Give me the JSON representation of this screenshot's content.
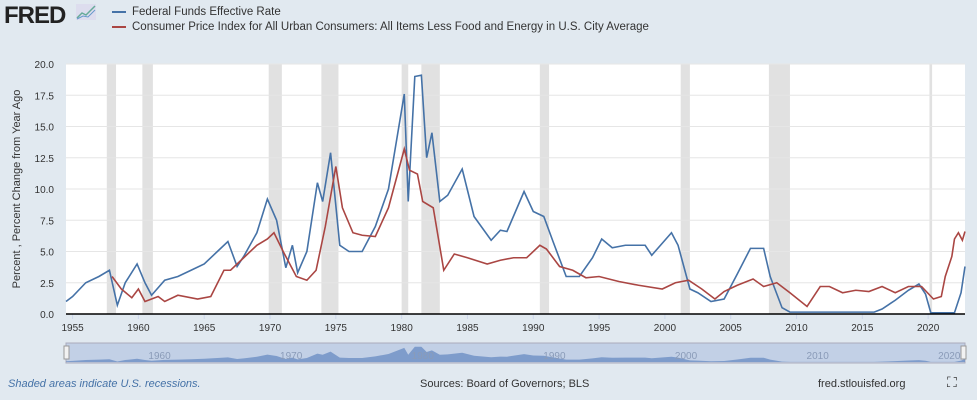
{
  "logo": "FRED",
  "footer": {
    "note": "Shaded areas indicate U.S. recessions.",
    "sources": "Sources: Board of Governors; BLS",
    "site": "fred.stlouisfed.org"
  },
  "colors": {
    "fedfunds": "#4572a7",
    "cpi": "#aa4643",
    "recession": "#e1e1e1",
    "background": "#e1e9f0"
  },
  "chart_data": {
    "type": "line",
    "ylabel": "Percent , Percent Change from Year Ago",
    "ylim": [
      0,
      20
    ],
    "xlim": [
      1954.5,
      2022.8
    ],
    "yticks": [
      "0.0",
      "2.5",
      "5.0",
      "7.5",
      "10.0",
      "12.5",
      "15.0",
      "17.5",
      "20.0"
    ],
    "xticks": [
      "1955",
      "1960",
      "1965",
      "1970",
      "1975",
      "1980",
      "1985",
      "1990",
      "1995",
      "2000",
      "2005",
      "2010",
      "2015",
      "2020"
    ],
    "navigator_ticks": [
      "1960",
      "1970",
      "1980",
      "1990",
      "2000",
      "2010",
      "2020"
    ],
    "recessions": [
      [
        1957.6,
        1958.3
      ],
      [
        1960.3,
        1961.1
      ],
      [
        1969.9,
        1970.9
      ],
      [
        1973.9,
        1975.2
      ],
      [
        1980.0,
        1980.5
      ],
      [
        1981.5,
        1982.9
      ],
      [
        1990.5,
        1991.2
      ],
      [
        2001.2,
        2001.9
      ],
      [
        2007.9,
        2009.5
      ],
      [
        2020.1,
        2020.3
      ]
    ],
    "series": [
      {
        "name": "Federal Funds Effective Rate",
        "points": [
          [
            1954.5,
            1.0
          ],
          [
            1955,
            1.4
          ],
          [
            1956,
            2.5
          ],
          [
            1957,
            3.0
          ],
          [
            1957.8,
            3.5
          ],
          [
            1958.4,
            0.7
          ],
          [
            1959,
            2.5
          ],
          [
            1959.9,
            4.0
          ],
          [
            1960.5,
            2.5
          ],
          [
            1961,
            1.5
          ],
          [
            1962,
            2.7
          ],
          [
            1963,
            3.0
          ],
          [
            1964,
            3.5
          ],
          [
            1965,
            4.0
          ],
          [
            1966,
            5.0
          ],
          [
            1966.8,
            5.8
          ],
          [
            1967.5,
            3.8
          ],
          [
            1968,
            4.6
          ],
          [
            1969,
            6.5
          ],
          [
            1969.8,
            9.2
          ],
          [
            1970.5,
            7.5
          ],
          [
            1971.2,
            3.7
          ],
          [
            1971.7,
            5.5
          ],
          [
            1972.1,
            3.3
          ],
          [
            1972.8,
            5.0
          ],
          [
            1973.6,
            10.5
          ],
          [
            1974.0,
            9.0
          ],
          [
            1974.6,
            12.9
          ],
          [
            1975.3,
            5.5
          ],
          [
            1976,
            5.0
          ],
          [
            1977,
            5.0
          ],
          [
            1978,
            7.0
          ],
          [
            1979,
            10.0
          ],
          [
            1980.2,
            17.6
          ],
          [
            1980.5,
            9.0
          ],
          [
            1981.0,
            19.0
          ],
          [
            1981.5,
            19.1
          ],
          [
            1981.9,
            12.5
          ],
          [
            1982.3,
            14.5
          ],
          [
            1982.9,
            9.0
          ],
          [
            1983.5,
            9.5
          ],
          [
            1984.6,
            11.6
          ],
          [
            1985.5,
            7.8
          ],
          [
            1986.8,
            5.9
          ],
          [
            1987.5,
            6.7
          ],
          [
            1988,
            6.6
          ],
          [
            1989.3,
            9.8
          ],
          [
            1990,
            8.2
          ],
          [
            1990.8,
            7.8
          ],
          [
            1991.5,
            5.8
          ],
          [
            1992.5,
            3.0
          ],
          [
            1993.5,
            3.0
          ],
          [
            1994.5,
            4.5
          ],
          [
            1995.2,
            6.0
          ],
          [
            1996,
            5.3
          ],
          [
            1997,
            5.5
          ],
          [
            1998.5,
            5.5
          ],
          [
            1999,
            4.7
          ],
          [
            2000.5,
            6.5
          ],
          [
            2001,
            5.5
          ],
          [
            2001.9,
            2.0
          ],
          [
            2002.5,
            1.7
          ],
          [
            2003.5,
            1.0
          ],
          [
            2004.5,
            1.2
          ],
          [
            2005.5,
            3.2
          ],
          [
            2006.5,
            5.25
          ],
          [
            2007.5,
            5.25
          ],
          [
            2008,
            3.0
          ],
          [
            2008.9,
            0.5
          ],
          [
            2009.5,
            0.15
          ],
          [
            2015.9,
            0.15
          ],
          [
            2016.5,
            0.4
          ],
          [
            2017.5,
            1.1
          ],
          [
            2018.5,
            1.9
          ],
          [
            2019.3,
            2.4
          ],
          [
            2019.8,
            1.6
          ],
          [
            2020.2,
            0.1
          ],
          [
            2022.0,
            0.1
          ],
          [
            2022.5,
            1.7
          ],
          [
            2022.8,
            3.8
          ]
        ]
      },
      {
        "name": "Consumer Price Index for All Urban Consumers: All Items Less Food and Energy in U.S. City Average",
        "points": [
          [
            1958,
            3.0
          ],
          [
            1958.7,
            2.0
          ],
          [
            1959.5,
            1.3
          ],
          [
            1960,
            2.0
          ],
          [
            1960.5,
            1.0
          ],
          [
            1961.5,
            1.4
          ],
          [
            1962,
            1.0
          ],
          [
            1963,
            1.5
          ],
          [
            1964.5,
            1.2
          ],
          [
            1965.5,
            1.4
          ],
          [
            1966.5,
            3.5
          ],
          [
            1967,
            3.5
          ],
          [
            1968,
            4.5
          ],
          [
            1969,
            5.5
          ],
          [
            1969.8,
            6.0
          ],
          [
            1970.3,
            6.5
          ],
          [
            1971,
            5.0
          ],
          [
            1972,
            3.0
          ],
          [
            1972.8,
            2.7
          ],
          [
            1973.5,
            3.5
          ],
          [
            1974.2,
            7.0
          ],
          [
            1975.0,
            11.8
          ],
          [
            1975.5,
            8.5
          ],
          [
            1976.3,
            6.5
          ],
          [
            1977,
            6.3
          ],
          [
            1978,
            6.2
          ],
          [
            1979,
            8.5
          ],
          [
            1980.2,
            13.2
          ],
          [
            1980.6,
            11.5
          ],
          [
            1981.2,
            11.2
          ],
          [
            1981.6,
            9.0
          ],
          [
            1982.4,
            8.5
          ],
          [
            1983.2,
            3.5
          ],
          [
            1984,
            4.8
          ],
          [
            1985,
            4.5
          ],
          [
            1986.5,
            4.0
          ],
          [
            1987.5,
            4.3
          ],
          [
            1988.5,
            4.5
          ],
          [
            1989.5,
            4.5
          ],
          [
            1990.5,
            5.5
          ],
          [
            1991,
            5.2
          ],
          [
            1992,
            3.8
          ],
          [
            1993,
            3.5
          ],
          [
            1994,
            2.9
          ],
          [
            1995,
            3.0
          ],
          [
            1996.5,
            2.6
          ],
          [
            1998,
            2.3
          ],
          [
            1999.8,
            2.0
          ],
          [
            2000.8,
            2.5
          ],
          [
            2001.8,
            2.7
          ],
          [
            2002.8,
            2.0
          ],
          [
            2003.8,
            1.2
          ],
          [
            2004.5,
            1.8
          ],
          [
            2005.5,
            2.3
          ],
          [
            2006.7,
            2.8
          ],
          [
            2007.5,
            2.2
          ],
          [
            2008.5,
            2.5
          ],
          [
            2009.5,
            1.7
          ],
          [
            2010.8,
            0.6
          ],
          [
            2011.8,
            2.2
          ],
          [
            2012.5,
            2.2
          ],
          [
            2013.5,
            1.7
          ],
          [
            2014.5,
            1.9
          ],
          [
            2015.5,
            1.8
          ],
          [
            2016.5,
            2.2
          ],
          [
            2017.5,
            1.7
          ],
          [
            2018.5,
            2.2
          ],
          [
            2019.5,
            2.2
          ],
          [
            2020.4,
            1.2
          ],
          [
            2021.0,
            1.4
          ],
          [
            2021.3,
            3.0
          ],
          [
            2021.8,
            4.6
          ],
          [
            2022.0,
            6.0
          ],
          [
            2022.3,
            6.5
          ],
          [
            2022.6,
            5.9
          ],
          [
            2022.8,
            6.6
          ]
        ]
      }
    ]
  }
}
